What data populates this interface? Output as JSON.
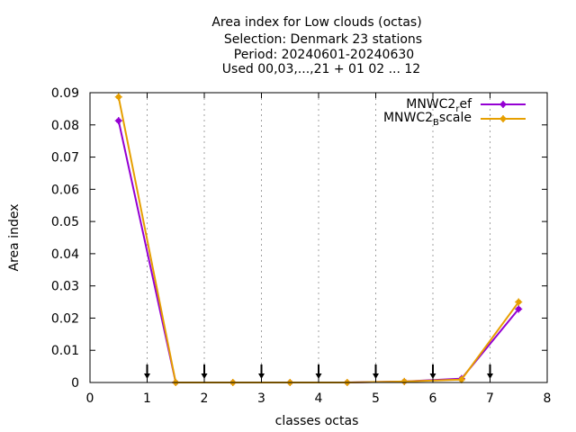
{
  "chart_data": {
    "type": "line",
    "title_lines": [
      "Area index  for Low clouds (octas)",
      "Selection: Denmark     23 stations",
      "Period: 20240601-20240630",
      "Used 00,03,...,21 + 01 02 ... 12"
    ],
    "xlabel": "classes octas",
    "ylabel": "Area index",
    "xlim": [
      0,
      8
    ],
    "ylim": [
      0,
      0.09
    ],
    "x_ticks": [
      "0",
      "1",
      "2",
      "3",
      "4",
      "5",
      "6",
      "7",
      "8"
    ],
    "y_ticks": [
      "0",
      "0.01",
      "0.02",
      "0.03",
      "0.04",
      "0.05",
      "0.06",
      "0.07",
      "0.08",
      "0.09"
    ],
    "grid": "vertical-dashed",
    "legend_position": "top-right",
    "arrow_markers_x": [
      1,
      2,
      3,
      4,
      5,
      6,
      7
    ],
    "x": [
      0.5,
      1.5,
      2.5,
      3.5,
      4.5,
      5.5,
      6.5,
      7.5
    ],
    "series": [
      {
        "name_base": "MNWC2",
        "name_sub": "r",
        "name_rest": "ef",
        "color": "#9400d3",
        "values": [
          0.0813,
          0.0,
          0.0,
          0.0,
          0.0,
          0.0003,
          0.0012,
          0.0228
        ]
      },
      {
        "name_base": "MNWC2",
        "name_sub": "B",
        "name_rest": "scale",
        "color": "#e69f00",
        "values": [
          0.0887,
          0.0,
          0.0,
          0.0,
          0.0,
          0.0003,
          0.0009,
          0.025
        ]
      }
    ]
  }
}
